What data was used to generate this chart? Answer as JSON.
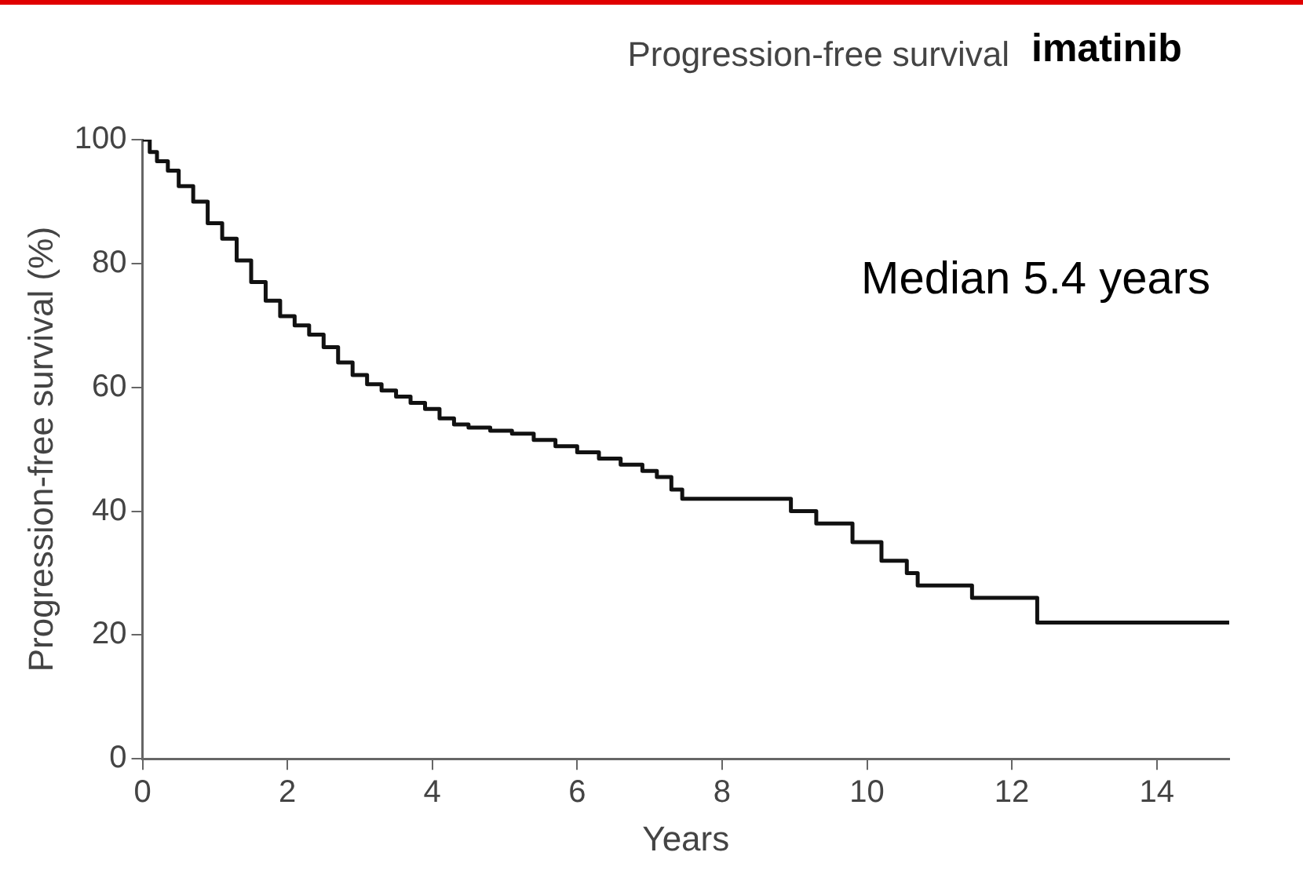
{
  "chart_data": {
    "type": "step",
    "title": "Progression-free survival",
    "xlabel": "Years",
    "ylabel": "Progression-free survival (%)",
    "annotations": [
      "imatinib",
      "Median 5.4 years"
    ],
    "x": [
      0,
      0.1,
      0.2,
      0.35,
      0.5,
      0.7,
      0.9,
      1.1,
      1.3,
      1.5,
      1.7,
      1.9,
      2.1,
      2.3,
      2.5,
      2.7,
      2.9,
      3.1,
      3.3,
      3.5,
      3.7,
      3.9,
      4.1,
      4.3,
      4.5,
      4.8,
      5.1,
      5.4,
      5.7,
      6.0,
      6.3,
      6.6,
      6.9,
      7.1,
      7.3,
      7.45,
      8.95,
      9.3,
      9.8,
      10.2,
      10.55,
      10.7,
      11.45,
      12.35,
      15
    ],
    "series": [
      {
        "color": "#111111",
        "values": [
          100,
          98,
          96.5,
          95,
          92.5,
          90,
          86.5,
          84,
          80.5,
          77,
          74,
          71.5,
          70,
          68.5,
          66.5,
          64,
          62,
          60.5,
          59.5,
          58.5,
          57.5,
          56.5,
          55,
          54,
          53.5,
          53,
          52.5,
          51.5,
          50.5,
          49.5,
          48.5,
          47.5,
          46.5,
          45.5,
          43.5,
          42,
          40,
          38,
          35,
          32,
          30,
          28,
          26,
          22,
          22
        ]
      }
    ],
    "xlim": [
      0,
      15
    ],
    "xticks": [
      0,
      2,
      4,
      6,
      8,
      10,
      12,
      14
    ],
    "ylim": [
      0,
      100
    ],
    "yticks": [
      0,
      20,
      40,
      60,
      80,
      100
    ],
    "grid": false,
    "legend": false,
    "marker": "none",
    "line_style": "solid"
  }
}
